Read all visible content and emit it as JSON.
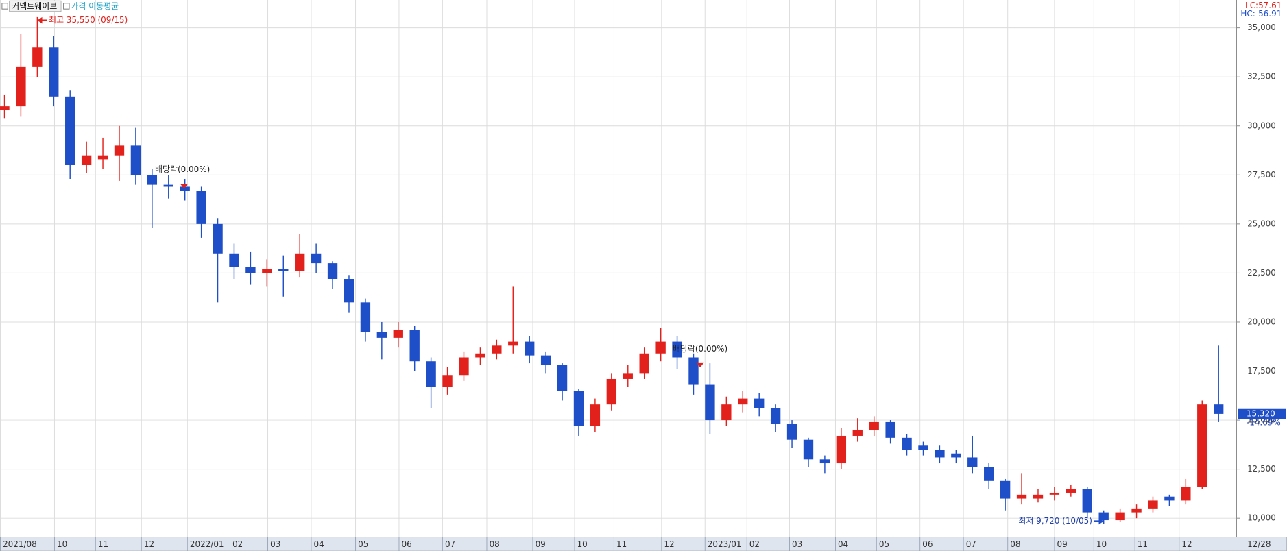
{
  "chart_data": {
    "type": "candlestick",
    "series": [
      {
        "name": "커넥트웨이브",
        "open": [
          30800,
          31000,
          33000,
          34000,
          31500,
          28000,
          28300,
          28500,
          29000,
          27500,
          27000,
          26900,
          26700,
          25000,
          23500,
          22800,
          22500,
          22700,
          22600,
          23500,
          23000,
          22200,
          21000,
          19500,
          19200,
          19600,
          18000,
          16700,
          17300,
          18200,
          18400,
          18800,
          19000,
          18300,
          17800,
          16500,
          14700,
          15800,
          17100,
          17400,
          18400,
          19000,
          18200,
          16800,
          15000,
          15800,
          16100,
          15600,
          14800,
          14000,
          13000,
          12800,
          14200,
          14500,
          14900,
          14100,
          13700,
          13500,
          13300,
          13100,
          12600,
          11900,
          11000,
          11000,
          11200,
          11300,
          11500,
          10300,
          9900,
          10300,
          10500,
          11100,
          10900,
          11600,
          15800
        ],
        "high": [
          31600,
          34700,
          35550,
          34600,
          31800,
          29200,
          29400,
          30000,
          29900,
          27800,
          27500,
          27300,
          26900,
          25300,
          24000,
          23600,
          23200,
          23400,
          24500,
          24000,
          23100,
          22400,
          21200,
          20000,
          20000,
          19800,
          18200,
          17700,
          18500,
          18700,
          19100,
          21800,
          19300,
          18500,
          17900,
          16600,
          16100,
          17400,
          17800,
          18700,
          19700,
          19300,
          18400,
          17900,
          16200,
          16500,
          16400,
          15800,
          15000,
          14100,
          13200,
          14600,
          15100,
          15200,
          15000,
          14300,
          13900,
          13700,
          13500,
          14200,
          12800,
          12000,
          12300,
          11500,
          11600,
          11700,
          11600,
          10400,
          10500,
          10700,
          11100,
          11200,
          12000,
          16000,
          18800
        ],
        "low": [
          30400,
          30500,
          32500,
          31000,
          27300,
          27600,
          27800,
          27200,
          27000,
          24800,
          26300,
          26200,
          24300,
          21000,
          22200,
          21900,
          21800,
          21300,
          22300,
          22500,
          21700,
          20500,
          19000,
          18100,
          18700,
          17500,
          15600,
          16300,
          17000,
          17800,
          18100,
          18400,
          17900,
          17400,
          16000,
          14200,
          14400,
          15500,
          16700,
          17100,
          18000,
          17600,
          16300,
          14300,
          14700,
          15400,
          15200,
          14400,
          13600,
          12600,
          12300,
          12500,
          13900,
          14200,
          13800,
          13200,
          13200,
          12800,
          12800,
          12300,
          11500,
          10400,
          10700,
          10800,
          10900,
          11100,
          10000,
          9720,
          9800,
          10000,
          10300,
          10600,
          10700,
          11500,
          14900
        ],
        "close": [
          31000,
          33000,
          34000,
          31500,
          28000,
          28500,
          28500,
          29000,
          27500,
          27000,
          26900,
          26700,
          25000,
          23500,
          22800,
          22500,
          22700,
          22600,
          23500,
          23000,
          22200,
          21000,
          19500,
          19200,
          19600,
          18000,
          16700,
          17300,
          18200,
          18400,
          18800,
          19000,
          18300,
          17800,
          16500,
          14700,
          15800,
          17100,
          17400,
          18400,
          19000,
          18200,
          16800,
          15000,
          15800,
          16100,
          15600,
          14800,
          14000,
          13000,
          12800,
          14200,
          14500,
          14900,
          14100,
          13500,
          13500,
          13100,
          13100,
          12600,
          11900,
          11000,
          11200,
          11200,
          11300,
          11500,
          10300,
          9900,
          10300,
          10500,
          10900,
          10900,
          11600,
          15800,
          15320
        ]
      },
      {
        "name": "가격 이동평균",
        "color": "#1fa3c9"
      }
    ],
    "up_color": "#e3211c",
    "down_color": "#1f4fc8",
    "grid": true,
    "ylim": [
      9040,
      36420
    ],
    "yticks": [
      {
        "value": 10000,
        "label": "10,000"
      },
      {
        "value": 12500,
        "label": "12,500"
      },
      {
        "value": 15000,
        "label": "15,000"
      },
      {
        "value": 17500,
        "label": "17,500"
      },
      {
        "value": 20000,
        "label": "20,000"
      },
      {
        "value": 22500,
        "label": "22,500"
      },
      {
        "value": 25000,
        "label": "25,000"
      },
      {
        "value": 27500,
        "label": "27,500"
      },
      {
        "value": 30000,
        "label": "30,000"
      },
      {
        "value": 32500,
        "label": "32,500"
      },
      {
        "value": 35000,
        "label": "35,000"
      }
    ],
    "xlim": [
      -0.25,
      75.1
    ],
    "xticks": [
      {
        "value": -0.25,
        "label": "2021/08"
      },
      {
        "value": 3.05,
        "label": "10"
      },
      {
        "value": 5.55,
        "label": "11"
      },
      {
        "value": 8.35,
        "label": "12"
      },
      {
        "value": 11.15,
        "label": "2022/01"
      },
      {
        "value": 13.75,
        "label": "02"
      },
      {
        "value": 16.05,
        "label": "03"
      },
      {
        "value": 18.7,
        "label": "04"
      },
      {
        "value": 21.4,
        "label": "05"
      },
      {
        "value": 24.05,
        "label": "06"
      },
      {
        "value": 26.7,
        "label": "07"
      },
      {
        "value": 29.4,
        "label": "08"
      },
      {
        "value": 32.2,
        "label": "09"
      },
      {
        "value": 34.75,
        "label": "10"
      },
      {
        "value": 37.15,
        "label": "11"
      },
      {
        "value": 40.05,
        "label": "12"
      },
      {
        "value": 42.7,
        "label": "2023/01"
      },
      {
        "value": 45.25,
        "label": "02"
      },
      {
        "value": 47.85,
        "label": "03"
      },
      {
        "value": 50.65,
        "label": "04"
      },
      {
        "value": 53.15,
        "label": "05"
      },
      {
        "value": 55.8,
        "label": "06"
      },
      {
        "value": 58.45,
        "label": "07"
      },
      {
        "value": 61.15,
        "label": "08"
      },
      {
        "value": 64,
        "label": "09"
      },
      {
        "value": 66.4,
        "label": "10"
      },
      {
        "value": 68.9,
        "label": "11"
      },
      {
        "value": 71.6,
        "label": "12"
      }
    ],
    "x_end_label": "12/28",
    "high_label": "최고 35,550 (09/15)",
    "low_label": "최저 9,720 (10/05)",
    "dividend_labels": [
      "배당락(0.00%)",
      "배당락(0.00%)"
    ],
    "indicators": [
      "LC:57.61",
      "HC:-56.91"
    ],
    "last_price_label": "15,320",
    "last_change_label": "-14.69%"
  }
}
